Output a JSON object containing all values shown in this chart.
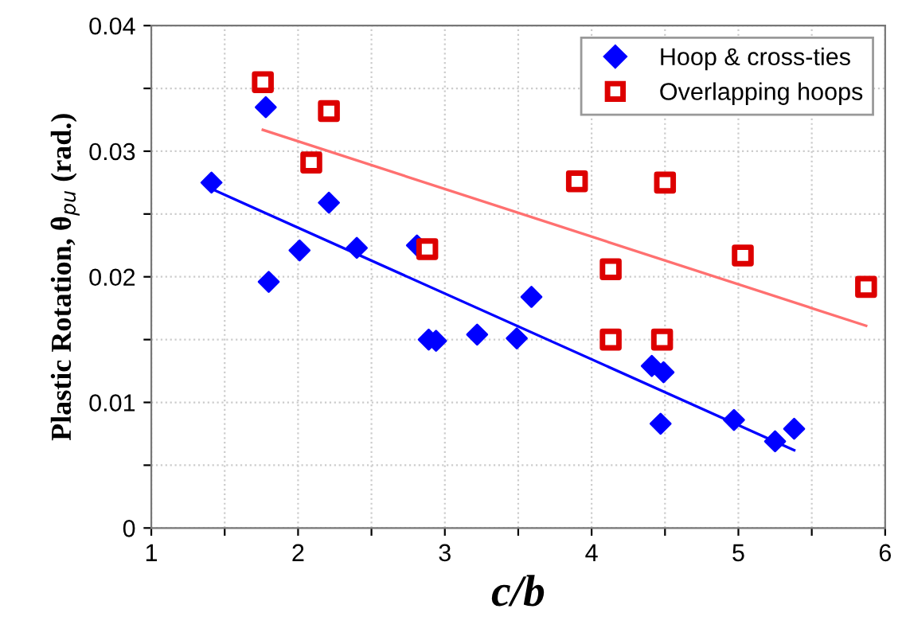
{
  "chart_data": {
    "type": "scatter",
    "xlabel": "c/b",
    "ylabel": "Plastic Rotation, θ$_{pu}$ (rad.)",
    "xlim": [
      1,
      6
    ],
    "ylim": [
      0,
      0.04
    ],
    "xticks": [
      1,
      {
        "value": 1.5,
        "label": null
      },
      2,
      {
        "value": 2.5,
        "label": null
      },
      3,
      {
        "value": 3.5,
        "label": null
      },
      4,
      {
        "value": 4.5,
        "label": null
      },
      5,
      {
        "value": 5.5,
        "label": null
      },
      6
    ],
    "yticks": [
      0,
      {
        "value": 0.005,
        "label": null
      },
      0.01,
      {
        "value": 0.015,
        "label": null
      },
      0.02,
      {
        "value": 0.025,
        "label": null
      },
      0.03,
      {
        "value": 0.035,
        "label": null
      },
      0.04
    ],
    "grid": true,
    "legend": "top right",
    "series": [
      {
        "name": "Hoop & cross-ties",
        "marker": "diamond",
        "color": "#0000ff",
        "x": [
          1.41,
          1.78,
          1.8,
          2.01,
          2.21,
          2.4,
          2.81,
          2.89,
          2.94,
          3.22,
          3.49,
          3.59,
          4.41,
          4.47,
          4.49,
          4.97,
          5.25,
          5.38
        ],
        "values": [
          0.0275,
          0.0335,
          0.0196,
          0.0221,
          0.0259,
          0.0223,
          0.0225,
          0.015,
          0.0149,
          0.0154,
          0.0151,
          0.0184,
          0.0129,
          0.0083,
          0.0124,
          0.0086,
          0.0069,
          0.0079
        ]
      },
      {
        "name": "Overlapping hoops",
        "marker": "square",
        "color": "#dd0000",
        "x": [
          1.76,
          2.09,
          2.21,
          2.88,
          3.9,
          4.13,
          4.13,
          4.5,
          4.48,
          5.03,
          5.87
        ],
        "values": [
          0.0355,
          0.0291,
          0.0332,
          0.0222,
          0.0276,
          0.0206,
          0.015,
          0.0275,
          0.015,
          0.0217,
          0.0192
        ]
      },
      {
        "type": "line",
        "color": "#0000ff",
        "x": [
          1.41,
          5.38
        ],
        "values": [
          0.027,
          0.0062
        ]
      },
      {
        "type": "line",
        "color": "#ff7070",
        "x": [
          1.76,
          5.87
        ],
        "values": [
          0.0317,
          0.0161
        ]
      }
    ]
  }
}
